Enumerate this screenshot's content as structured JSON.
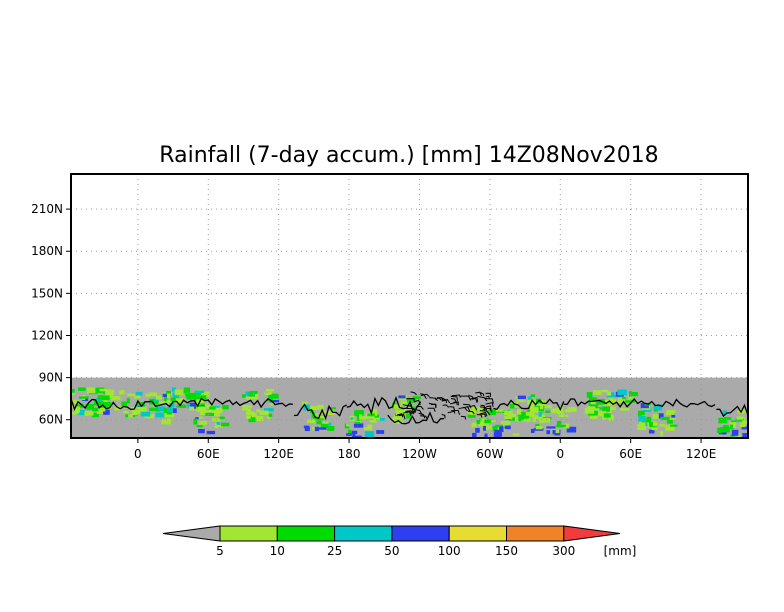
{
  "chart_data": {
    "type": "heatmap",
    "title": "Rainfall (7-day accum.) [mm] 14Z08Nov2018",
    "y_tick_labels": [
      "210N",
      "180N",
      "150N",
      "120N",
      "90N",
      "60N"
    ],
    "y_tick_values": [
      210,
      180,
      150,
      120,
      90,
      60
    ],
    "x_tick_labels": [
      "0",
      "60E",
      "120E",
      "180",
      "120W",
      "60W",
      "0",
      "60E",
      "120E"
    ],
    "x_tick_values": [
      0,
      60,
      120,
      180,
      240,
      300,
      360,
      420,
      480
    ],
    "xlim": [
      -57,
      520
    ],
    "ylim": [
      47,
      235
    ],
    "data_ylim": [
      47,
      90
    ],
    "grid": true,
    "colorbar": {
      "labels": [
        "5",
        "10",
        "25",
        "50",
        "100",
        "150",
        "300"
      ],
      "unit": "[mm]",
      "colors": [
        "#aaaaaa",
        "#a0e632",
        "#00dc00",
        "#00c8c8",
        "#2c40f0",
        "#e6dc32",
        "#f08228",
        "#f03c3c"
      ]
    },
    "background_color": "#aaaaaa"
  }
}
